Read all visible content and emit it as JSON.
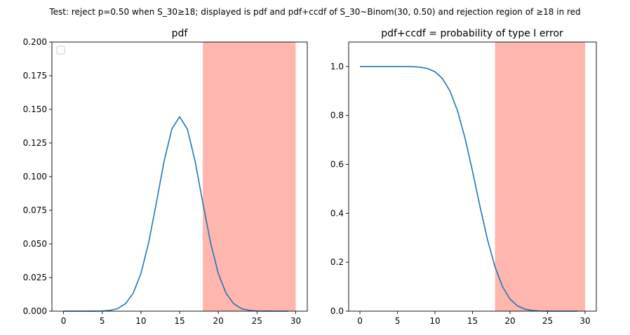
{
  "suptitle": "Test: reject p=0.50 when S_30≥18; displayed is pdf and pdf+ccdf of S_30~Binom(30, 0.50) and rejection region of ≥18 in red",
  "colors": {
    "line": "#1f77b4",
    "rejection": "#ffb6ae",
    "axes": "#000000"
  },
  "chart_data": [
    {
      "type": "line",
      "title": "pdf",
      "xlabel": "",
      "ylabel": "",
      "xlim": [
        -1.5,
        31.5
      ],
      "ylim": [
        0,
        0.2
      ],
      "xticks": [
        0,
        5,
        10,
        15,
        20,
        25,
        30
      ],
      "yticks": [
        0.0,
        0.025,
        0.05,
        0.075,
        0.1,
        0.125,
        0.15,
        0.175,
        0.2
      ],
      "ytick_labels": [
        "0.000",
        "0.025",
        "0.050",
        "0.075",
        "0.100",
        "0.125",
        "0.150",
        "0.175",
        "0.200"
      ],
      "legend": "top-left (empty)",
      "rejection_region": [
        18,
        30
      ],
      "x": [
        0,
        1,
        2,
        3,
        4,
        5,
        6,
        7,
        8,
        9,
        10,
        11,
        12,
        13,
        14,
        15,
        16,
        17,
        18,
        19,
        20,
        21,
        22,
        23,
        24,
        25,
        26,
        27,
        28,
        29
      ],
      "y": [
        0,
        0,
        0,
        0,
        3e-05,
        0.0001,
        0.0006,
        0.0019,
        0.0055,
        0.0133,
        0.028,
        0.0509,
        0.0806,
        0.1115,
        0.1354,
        0.1445,
        0.1354,
        0.1115,
        0.0806,
        0.0509,
        0.028,
        0.0133,
        0.0055,
        0.0019,
        0.0006,
        0.0001,
        3e-05,
        0,
        0,
        0
      ]
    },
    {
      "type": "line",
      "title": "pdf+ccdf = probability of type I error",
      "xlabel": "",
      "ylabel": "",
      "xlim": [
        -1.5,
        31.5
      ],
      "ylim": [
        0,
        1.1
      ],
      "xticks": [
        0,
        5,
        10,
        15,
        20,
        25,
        30
      ],
      "yticks": [
        0.0,
        0.2,
        0.4,
        0.6,
        0.8,
        1.0
      ],
      "ytick_labels": [
        "0.0",
        "0.2",
        "0.4",
        "0.6",
        "0.8",
        "1.0"
      ],
      "rejection_region": [
        18,
        30
      ],
      "x": [
        0,
        1,
        2,
        3,
        4,
        5,
        6,
        7,
        8,
        9,
        10,
        11,
        12,
        13,
        14,
        15,
        16,
        17,
        18,
        19,
        20,
        21,
        22,
        23,
        24,
        25,
        26,
        27,
        28,
        29
      ],
      "y": [
        1,
        1,
        1,
        1,
        1,
        0.9999,
        0.9998,
        0.9993,
        0.9974,
        0.9919,
        0.9786,
        0.9506,
        0.8998,
        0.8192,
        0.7077,
        0.5722,
        0.4278,
        0.2923,
        0.1808,
        0.1002,
        0.0494,
        0.0214,
        0.0081,
        0.0026,
        0.0007,
        0.0002,
        0,
        0,
        0,
        0
      ]
    }
  ]
}
